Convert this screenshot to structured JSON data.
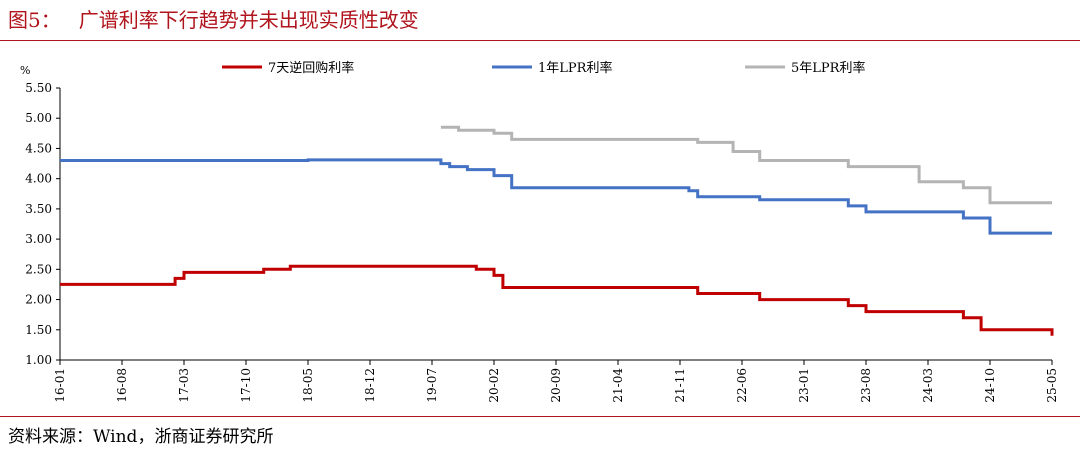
{
  "header": {
    "figure_label": "图5：",
    "title": "广谱利率下行趋势并未出现实质性改变"
  },
  "footer": {
    "source": "资料来源：Wind，浙商证券研究所"
  },
  "colors": {
    "accent": "#b0141c",
    "repo7d": "#c00000",
    "lpr1y": "#4472c4",
    "lpr5y": "#b4b4b4",
    "axis": "#000000"
  },
  "chart_data": {
    "type": "line",
    "ylabel": "%",
    "ylim": [
      1.0,
      5.5
    ],
    "yticks": [
      1.0,
      1.5,
      2.0,
      2.5,
      3.0,
      3.5,
      4.0,
      4.5,
      5.0,
      5.5
    ],
    "ytick_labels": [
      "1.00",
      "1.50",
      "2.00",
      "2.50",
      "3.00",
      "3.50",
      "4.00",
      "4.50",
      "5.00",
      "5.50"
    ],
    "xlim": [
      "2016-01",
      "2025-05"
    ],
    "xticks": [
      "2016-01",
      "2016-08",
      "2017-03",
      "2017-10",
      "2018-05",
      "2018-12",
      "2019-07",
      "2020-02",
      "2020-09",
      "2021-04",
      "2021-11",
      "2022-06",
      "2023-01",
      "2023-08",
      "2024-03",
      "2024-10",
      "2025-05"
    ],
    "xtick_labels": [
      "16-01",
      "16-08",
      "17-03",
      "17-10",
      "18-05",
      "18-12",
      "19-07",
      "20-02",
      "20-09",
      "21-04",
      "21-11",
      "22-06",
      "23-01",
      "23-08",
      "24-03",
      "24-10",
      "25-05"
    ],
    "grid": false,
    "legend_position": "top",
    "step": true,
    "series": [
      {
        "name": "7天逆回购利率",
        "color": "#c00000",
        "points": [
          [
            "2016-01",
            2.25
          ],
          [
            "2017-02",
            2.35
          ],
          [
            "2017-03",
            2.45
          ],
          [
            "2017-12",
            2.5
          ],
          [
            "2018-03",
            2.55
          ],
          [
            "2019-12",
            2.5
          ],
          [
            "2020-02",
            2.4
          ],
          [
            "2020-03",
            2.2
          ],
          [
            "2022-01",
            2.1
          ],
          [
            "2022-08",
            2.0
          ],
          [
            "2023-06",
            1.9
          ],
          [
            "2023-08",
            1.8
          ],
          [
            "2024-07",
            1.7
          ],
          [
            "2024-09",
            1.5
          ],
          [
            "2025-05",
            1.4
          ]
        ]
      },
      {
        "name": "1年LPR利率",
        "color": "#4472c4",
        "points": [
          [
            "2016-01",
            4.3
          ],
          [
            "2018-05",
            4.31
          ],
          [
            "2019-08",
            4.25
          ],
          [
            "2019-09",
            4.2
          ],
          [
            "2019-11",
            4.15
          ],
          [
            "2020-02",
            4.05
          ],
          [
            "2020-04",
            3.85
          ],
          [
            "2021-12",
            3.8
          ],
          [
            "2022-01",
            3.7
          ],
          [
            "2022-08",
            3.65
          ],
          [
            "2023-06",
            3.55
          ],
          [
            "2023-08",
            3.45
          ],
          [
            "2024-07",
            3.35
          ],
          [
            "2024-10",
            3.1
          ],
          [
            "2025-05",
            3.1
          ]
        ]
      },
      {
        "name": "5年LPR利率",
        "color": "#b4b4b4",
        "points": [
          [
            "2019-08",
            4.85
          ],
          [
            "2019-10",
            4.8
          ],
          [
            "2020-02",
            4.75
          ],
          [
            "2020-04",
            4.65
          ],
          [
            "2022-01",
            4.6
          ],
          [
            "2022-05",
            4.45
          ],
          [
            "2022-08",
            4.3
          ],
          [
            "2023-06",
            4.2
          ],
          [
            "2024-02",
            3.95
          ],
          [
            "2024-07",
            3.85
          ],
          [
            "2024-10",
            3.6
          ],
          [
            "2025-05",
            3.6
          ]
        ]
      }
    ]
  }
}
